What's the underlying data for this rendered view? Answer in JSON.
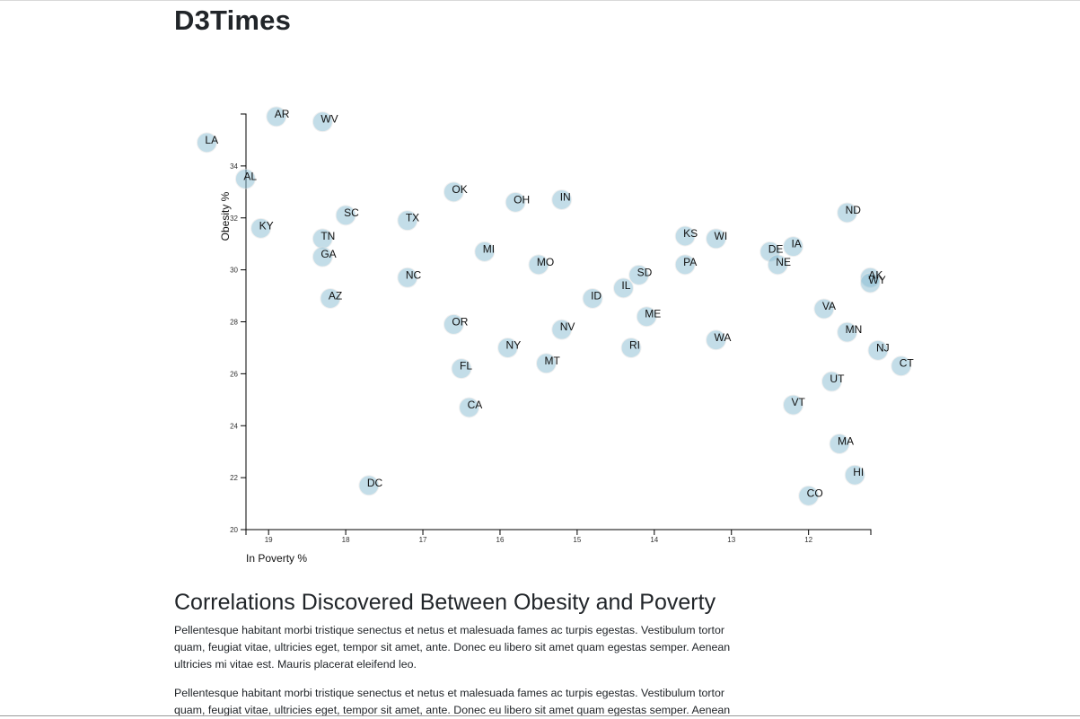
{
  "site": {
    "title": "D3Times"
  },
  "article": {
    "heading": "Correlations Discovered Between Obesity and Poverty",
    "paragraphs": [
      "Pellentesque habitant morbi tristique senectus et netus et malesuada fames ac turpis egestas. Vestibulum tortor quam, feugiat vitae, ultricies eget, tempor sit amet, ante. Donec eu libero sit amet quam egestas semper. Aenean ultricies mi vitae est. Mauris placerat eleifend leo.",
      "Pellentesque habitant morbi tristique senectus et netus et malesuada fames ac turpis egestas. Vestibulum tortor quam, feugiat vitae, ultricies eget, tempor sit amet, ante. Donec eu libero sit amet quam egestas semper. Aenean"
    ]
  },
  "chart_data": {
    "type": "scatter",
    "title": "",
    "xlabel": "In Poverty %",
    "ylabel": "Obesity %",
    "x_reversed": true,
    "xlim": [
      19.3,
      11.2
    ],
    "ylim": [
      20,
      36
    ],
    "x_ticks": [
      19,
      18,
      17,
      16,
      15,
      14,
      13,
      12
    ],
    "y_ticks": [
      20,
      22,
      24,
      26,
      28,
      30,
      32,
      34
    ],
    "grid": false,
    "colors": {
      "dot": "#89bdd3",
      "dot_stroke": "#e3e3e3",
      "axis": "#000000"
    },
    "points": [
      {
        "abbr": "LA",
        "x": 19.8,
        "y": 34.9
      },
      {
        "abbr": "AR",
        "x": 18.9,
        "y": 35.9
      },
      {
        "abbr": "WV",
        "x": 18.3,
        "y": 35.7
      },
      {
        "abbr": "AL",
        "x": 19.3,
        "y": 33.5
      },
      {
        "abbr": "KY",
        "x": 19.1,
        "y": 31.6
      },
      {
        "abbr": "SC",
        "x": 18.0,
        "y": 32.1
      },
      {
        "abbr": "TN",
        "x": 18.3,
        "y": 31.2
      },
      {
        "abbr": "GA",
        "x": 18.3,
        "y": 30.5
      },
      {
        "abbr": "AZ",
        "x": 18.2,
        "y": 28.9
      },
      {
        "abbr": "DC",
        "x": 17.7,
        "y": 21.7
      },
      {
        "abbr": "TX",
        "x": 17.2,
        "y": 31.9
      },
      {
        "abbr": "NC",
        "x": 17.2,
        "y": 29.7
      },
      {
        "abbr": "OK",
        "x": 16.6,
        "y": 33.0
      },
      {
        "abbr": "OR",
        "x": 16.6,
        "y": 27.9
      },
      {
        "abbr": "FL",
        "x": 16.5,
        "y": 26.2
      },
      {
        "abbr": "CA",
        "x": 16.4,
        "y": 24.7
      },
      {
        "abbr": "MI",
        "x": 16.2,
        "y": 30.7
      },
      {
        "abbr": "NY",
        "x": 15.9,
        "y": 27.0
      },
      {
        "abbr": "OH",
        "x": 15.8,
        "y": 32.6
      },
      {
        "abbr": "MO",
        "x": 15.5,
        "y": 30.2
      },
      {
        "abbr": "MT",
        "x": 15.4,
        "y": 26.4
      },
      {
        "abbr": "IN",
        "x": 15.2,
        "y": 32.7
      },
      {
        "abbr": "NV",
        "x": 15.2,
        "y": 27.7
      },
      {
        "abbr": "ID",
        "x": 14.8,
        "y": 28.9
      },
      {
        "abbr": "IL",
        "x": 14.4,
        "y": 29.3
      },
      {
        "abbr": "RI",
        "x": 14.3,
        "y": 27.0
      },
      {
        "abbr": "SD",
        "x": 14.2,
        "y": 29.8
      },
      {
        "abbr": "ME",
        "x": 14.1,
        "y": 28.2
      },
      {
        "abbr": "KS",
        "x": 13.6,
        "y": 31.3
      },
      {
        "abbr": "PA",
        "x": 13.6,
        "y": 30.2
      },
      {
        "abbr": "WI",
        "x": 13.2,
        "y": 31.2
      },
      {
        "abbr": "WA",
        "x": 13.2,
        "y": 27.3
      },
      {
        "abbr": "DE",
        "x": 12.5,
        "y": 30.7
      },
      {
        "abbr": "NE",
        "x": 12.4,
        "y": 30.2
      },
      {
        "abbr": "IA",
        "x": 12.2,
        "y": 30.9
      },
      {
        "abbr": "VT",
        "x": 12.2,
        "y": 24.8
      },
      {
        "abbr": "CO",
        "x": 12.0,
        "y": 21.3
      },
      {
        "abbr": "VA",
        "x": 11.8,
        "y": 28.5
      },
      {
        "abbr": "UT",
        "x": 11.7,
        "y": 25.7
      },
      {
        "abbr": "MA",
        "x": 11.6,
        "y": 23.3
      },
      {
        "abbr": "ND",
        "x": 11.5,
        "y": 32.2
      },
      {
        "abbr": "MN",
        "x": 11.5,
        "y": 27.6
      },
      {
        "abbr": "HI",
        "x": 11.4,
        "y": 22.1
      },
      {
        "abbr": "AK",
        "x": 11.2,
        "y": 29.7
      },
      {
        "abbr": "WY",
        "x": 11.2,
        "y": 29.5
      },
      {
        "abbr": "NJ",
        "x": 11.1,
        "y": 26.9
      },
      {
        "abbr": "CT",
        "x": 10.8,
        "y": 26.3
      }
    ]
  }
}
